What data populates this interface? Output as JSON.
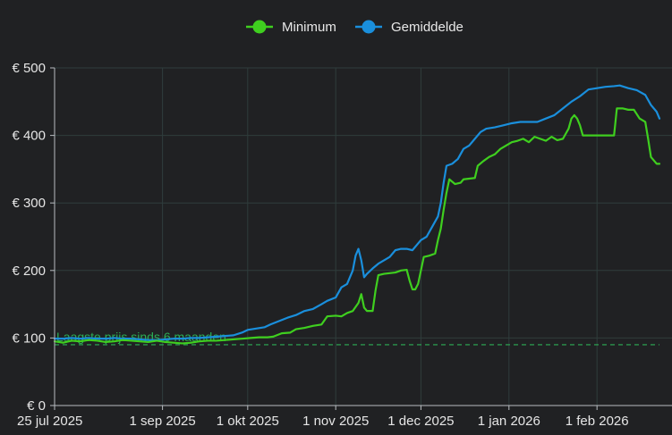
{
  "chart_data": {
    "type": "line",
    "x_axis": {
      "type": "date",
      "range": [
        "2025-07-25",
        "2026-02-23"
      ],
      "ticks": [
        {
          "date": "2025-07-25",
          "label": "25 jul 2025"
        },
        {
          "date": "2025-09-01",
          "label": "1 sep 2025"
        },
        {
          "date": "2025-10-01",
          "label": "1 okt 2025"
        },
        {
          "date": "2025-11-01",
          "label": "1 nov 2025"
        },
        {
          "date": "2025-12-01",
          "label": "1 dec 2025"
        },
        {
          "date": "2026-01-01",
          "label": "1 jan 2026"
        },
        {
          "date": "2026-02-01",
          "label": "1 feb 2026"
        }
      ]
    },
    "y_axis": {
      "range": [
        0,
        500
      ],
      "ticks": [
        {
          "value": 0,
          "label": "€ 0"
        },
        {
          "value": 100,
          "label": "€ 100"
        },
        {
          "value": 200,
          "label": "€ 200"
        },
        {
          "value": 300,
          "label": "€ 300"
        },
        {
          "value": 400,
          "label": "€ 400"
        },
        {
          "value": 500,
          "label": "€ 500"
        }
      ]
    },
    "grid": true,
    "legend_position": "top-center",
    "series": [
      {
        "name": "Minimum",
        "color": "#3fcf1f",
        "points": [
          [
            "2025-07-25",
            95
          ],
          [
            "2025-07-28",
            93
          ],
          [
            "2025-07-31",
            96
          ],
          [
            "2025-08-03",
            95
          ],
          [
            "2025-08-06",
            97
          ],
          [
            "2025-08-09",
            96
          ],
          [
            "2025-08-12",
            94
          ],
          [
            "2025-08-15",
            95
          ],
          [
            "2025-08-18",
            97
          ],
          [
            "2025-08-21",
            96
          ],
          [
            "2025-08-24",
            95
          ],
          [
            "2025-08-27",
            94
          ],
          [
            "2025-08-30",
            96
          ],
          [
            "2025-09-02",
            94
          ],
          [
            "2025-09-05",
            93
          ],
          [
            "2025-09-08",
            92
          ],
          [
            "2025-09-11",
            93
          ],
          [
            "2025-09-14",
            95
          ],
          [
            "2025-09-17",
            96
          ],
          [
            "2025-09-20",
            96
          ],
          [
            "2025-09-23",
            97
          ],
          [
            "2025-09-26",
            98
          ],
          [
            "2025-09-29",
            99
          ],
          [
            "2025-10-02",
            100
          ],
          [
            "2025-10-05",
            101
          ],
          [
            "2025-10-08",
            101
          ],
          [
            "2025-10-10",
            102
          ],
          [
            "2025-10-13",
            107
          ],
          [
            "2025-10-16",
            108
          ],
          [
            "2025-10-18",
            113
          ],
          [
            "2025-10-21",
            115
          ],
          [
            "2025-10-24",
            118
          ],
          [
            "2025-10-27",
            120
          ],
          [
            "2025-10-29",
            132
          ],
          [
            "2025-11-01",
            133
          ],
          [
            "2025-11-03",
            132
          ],
          [
            "2025-11-05",
            137
          ],
          [
            "2025-11-07",
            140
          ],
          [
            "2025-11-09",
            152
          ],
          [
            "2025-11-10",
            165
          ],
          [
            "2025-11-11",
            145
          ],
          [
            "2025-11-12",
            140
          ],
          [
            "2025-11-14",
            140
          ],
          [
            "2025-11-15",
            170
          ],
          [
            "2025-11-16",
            193
          ],
          [
            "2025-11-18",
            195
          ],
          [
            "2025-11-20",
            196
          ],
          [
            "2025-11-22",
            197
          ],
          [
            "2025-11-24",
            200
          ],
          [
            "2025-11-26",
            201
          ],
          [
            "2025-11-27",
            185
          ],
          [
            "2025-11-28",
            172
          ],
          [
            "2025-11-29",
            172
          ],
          [
            "2025-11-30",
            180
          ],
          [
            "2025-12-01",
            200
          ],
          [
            "2025-12-02",
            220
          ],
          [
            "2025-12-04",
            222
          ],
          [
            "2025-12-06",
            225
          ],
          [
            "2025-12-07",
            245
          ],
          [
            "2025-12-08",
            262
          ],
          [
            "2025-12-09",
            290
          ],
          [
            "2025-12-10",
            315
          ],
          [
            "2025-12-11",
            335
          ],
          [
            "2025-12-13",
            328
          ],
          [
            "2025-12-15",
            330
          ],
          [
            "2025-12-16",
            335
          ],
          [
            "2025-12-18",
            336
          ],
          [
            "2025-12-20",
            337
          ],
          [
            "2025-12-21",
            355
          ],
          [
            "2025-12-23",
            362
          ],
          [
            "2025-12-25",
            368
          ],
          [
            "2025-12-27",
            372
          ],
          [
            "2025-12-29",
            380
          ],
          [
            "2025-12-31",
            385
          ],
          [
            "2026-01-02",
            390
          ],
          [
            "2026-01-04",
            392
          ],
          [
            "2026-01-06",
            395
          ],
          [
            "2026-01-08",
            390
          ],
          [
            "2026-01-10",
            398
          ],
          [
            "2026-01-12",
            395
          ],
          [
            "2026-01-14",
            392
          ],
          [
            "2026-01-16",
            398
          ],
          [
            "2026-01-18",
            393
          ],
          [
            "2026-01-20",
            395
          ],
          [
            "2026-01-22",
            410
          ],
          [
            "2026-01-23",
            425
          ],
          [
            "2026-01-24",
            430
          ],
          [
            "2026-01-25",
            425
          ],
          [
            "2026-01-26",
            415
          ],
          [
            "2026-01-27",
            400
          ],
          [
            "2026-02-01",
            400
          ],
          [
            "2026-02-05",
            400
          ],
          [
            "2026-02-07",
            400
          ],
          [
            "2026-02-08",
            440
          ],
          [
            "2026-02-10",
            440
          ],
          [
            "2026-02-12",
            438
          ],
          [
            "2026-02-14",
            438
          ],
          [
            "2026-02-16",
            425
          ],
          [
            "2026-02-18",
            420
          ],
          [
            "2026-02-19",
            395
          ],
          [
            "2026-02-20",
            368
          ],
          [
            "2026-02-22",
            358
          ],
          [
            "2026-02-23",
            358
          ]
        ]
      },
      {
        "name": "Gemiddelde",
        "color": "#1a8fdc",
        "points": [
          [
            "2025-07-25",
            99
          ],
          [
            "2025-07-28",
            99
          ],
          [
            "2025-07-31",
            100
          ],
          [
            "2025-08-03",
            99
          ],
          [
            "2025-08-06",
            100
          ],
          [
            "2025-08-09",
            99
          ],
          [
            "2025-08-12",
            99
          ],
          [
            "2025-08-15",
            100
          ],
          [
            "2025-08-18",
            99
          ],
          [
            "2025-08-21",
            99
          ],
          [
            "2025-08-24",
            98
          ],
          [
            "2025-08-27",
            97
          ],
          [
            "2025-08-30",
            97
          ],
          [
            "2025-09-02",
            98
          ],
          [
            "2025-09-05",
            99
          ],
          [
            "2025-09-08",
            99
          ],
          [
            "2025-09-11",
            100
          ],
          [
            "2025-09-14",
            100
          ],
          [
            "2025-09-17",
            101
          ],
          [
            "2025-09-20",
            102
          ],
          [
            "2025-09-23",
            103
          ],
          [
            "2025-09-26",
            104
          ],
          [
            "2025-09-29",
            108
          ],
          [
            "2025-10-01",
            112
          ],
          [
            "2025-10-04",
            114
          ],
          [
            "2025-10-07",
            116
          ],
          [
            "2025-10-09",
            120
          ],
          [
            "2025-10-12",
            125
          ],
          [
            "2025-10-15",
            130
          ],
          [
            "2025-10-18",
            134
          ],
          [
            "2025-10-21",
            140
          ],
          [
            "2025-10-24",
            143
          ],
          [
            "2025-10-27",
            150
          ],
          [
            "2025-10-29",
            155
          ],
          [
            "2025-11-01",
            160
          ],
          [
            "2025-11-03",
            175
          ],
          [
            "2025-11-05",
            180
          ],
          [
            "2025-11-07",
            200
          ],
          [
            "2025-11-08",
            222
          ],
          [
            "2025-11-09",
            232
          ],
          [
            "2025-11-10",
            215
          ],
          [
            "2025-11-11",
            190
          ],
          [
            "2025-11-12",
            195
          ],
          [
            "2025-11-14",
            203
          ],
          [
            "2025-11-16",
            210
          ],
          [
            "2025-11-18",
            215
          ],
          [
            "2025-11-20",
            220
          ],
          [
            "2025-11-22",
            230
          ],
          [
            "2025-11-24",
            232
          ],
          [
            "2025-11-26",
            232
          ],
          [
            "2025-11-28",
            230
          ],
          [
            "2025-11-30",
            240
          ],
          [
            "2025-12-01",
            245
          ],
          [
            "2025-12-03",
            250
          ],
          [
            "2025-12-05",
            265
          ],
          [
            "2025-12-07",
            280
          ],
          [
            "2025-12-08",
            300
          ],
          [
            "2025-12-09",
            330
          ],
          [
            "2025-12-10",
            355
          ],
          [
            "2025-12-12",
            358
          ],
          [
            "2025-12-14",
            365
          ],
          [
            "2025-12-16",
            380
          ],
          [
            "2025-12-18",
            385
          ],
          [
            "2025-12-20",
            395
          ],
          [
            "2025-12-22",
            405
          ],
          [
            "2025-12-24",
            410
          ],
          [
            "2025-12-27",
            412
          ],
          [
            "2025-12-30",
            415
          ],
          [
            "2026-01-02",
            418
          ],
          [
            "2026-01-05",
            420
          ],
          [
            "2026-01-08",
            420
          ],
          [
            "2026-01-11",
            420
          ],
          [
            "2026-01-14",
            425
          ],
          [
            "2026-01-17",
            430
          ],
          [
            "2026-01-20",
            440
          ],
          [
            "2026-01-23",
            450
          ],
          [
            "2026-01-26",
            458
          ],
          [
            "2026-01-29",
            468
          ],
          [
            "2026-02-01",
            470
          ],
          [
            "2026-02-04",
            472
          ],
          [
            "2026-02-07",
            473
          ],
          [
            "2026-02-09",
            474
          ],
          [
            "2026-02-12",
            470
          ],
          [
            "2026-02-15",
            467
          ],
          [
            "2026-02-18",
            460
          ],
          [
            "2026-02-20",
            445
          ],
          [
            "2026-02-22",
            435
          ],
          [
            "2026-02-23",
            425
          ]
        ]
      }
    ],
    "reference_line": {
      "label": "Laagste prijs sinds 6 maanden",
      "value": 90,
      "color": "#2cae55",
      "style": "dashed"
    }
  },
  "theme": {
    "background": "#202123",
    "grid_color": "#2f3d3c",
    "axis_color": "#b8bcc0"
  }
}
